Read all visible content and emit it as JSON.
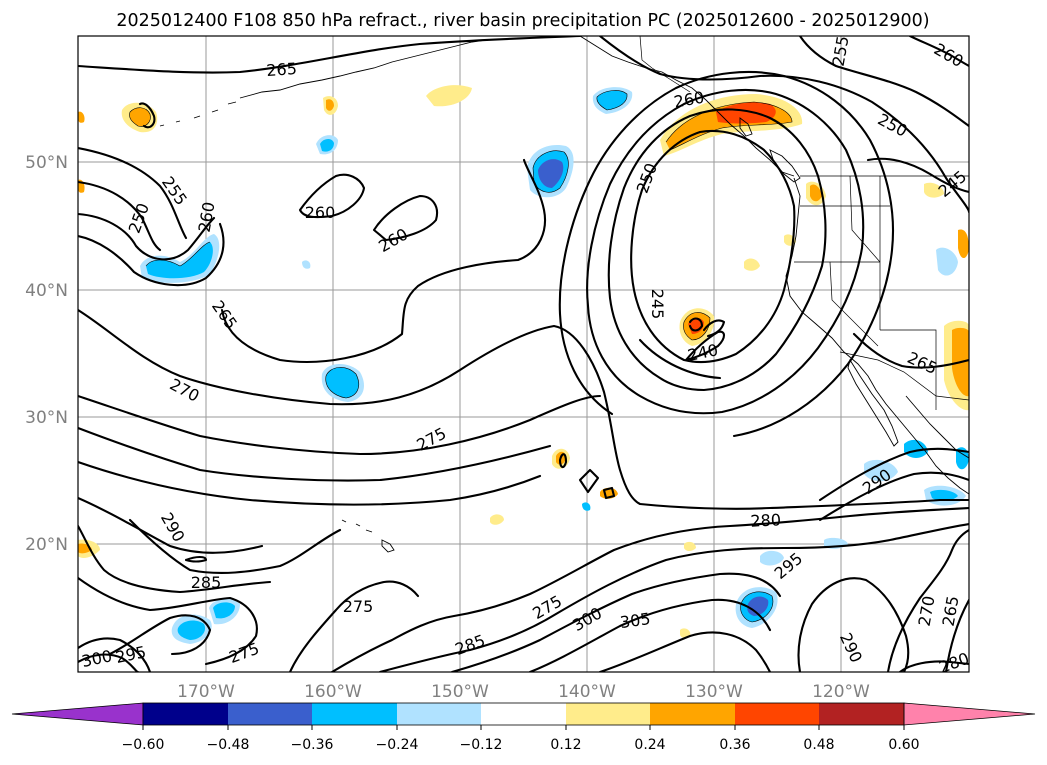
{
  "title": "2025012400 F108 850 hPa refract., river basin precipitation PC (2025012600 - 2025012900)",
  "map": {
    "lat_labels": [
      "50°N",
      "40°N",
      "30°N",
      "20°N"
    ],
    "lon_labels": [
      "170°W",
      "160°W",
      "150°W",
      "140°W",
      "130°W",
      "120°W"
    ],
    "colors": {
      "neg_060": "#9932CC",
      "neg_048": "#00008B",
      "neg_036": "#3A5FCD",
      "neg_024": "#00BFFF",
      "neg_012": "#B0E2FF",
      "zero": "#FFFFFF",
      "pos_012": "#FFEC8B",
      "pos_024": "#FFA500",
      "pos_036": "#FF4500",
      "pos_048": "#B22222",
      "pos_060": "#FF82AB"
    },
    "contour_labels": [
      "265",
      "255",
      "250",
      "260",
      "260",
      "260",
      "265",
      "270",
      "275",
      "290",
      "285",
      "275",
      "275",
      "275",
      "285",
      "300",
      "305",
      "280",
      "295",
      "290",
      "270",
      "265",
      "280",
      "255",
      "260",
      "250",
      "250",
      "245",
      "245",
      "240",
      "265",
      "260",
      "290",
      "300",
      "295"
    ]
  },
  "colorbar": {
    "ticks": [
      "−0.60",
      "−0.48",
      "−0.36",
      "−0.24",
      "−0.12",
      "0.12",
      "0.24",
      "0.36",
      "0.48",
      "0.60"
    ]
  }
}
